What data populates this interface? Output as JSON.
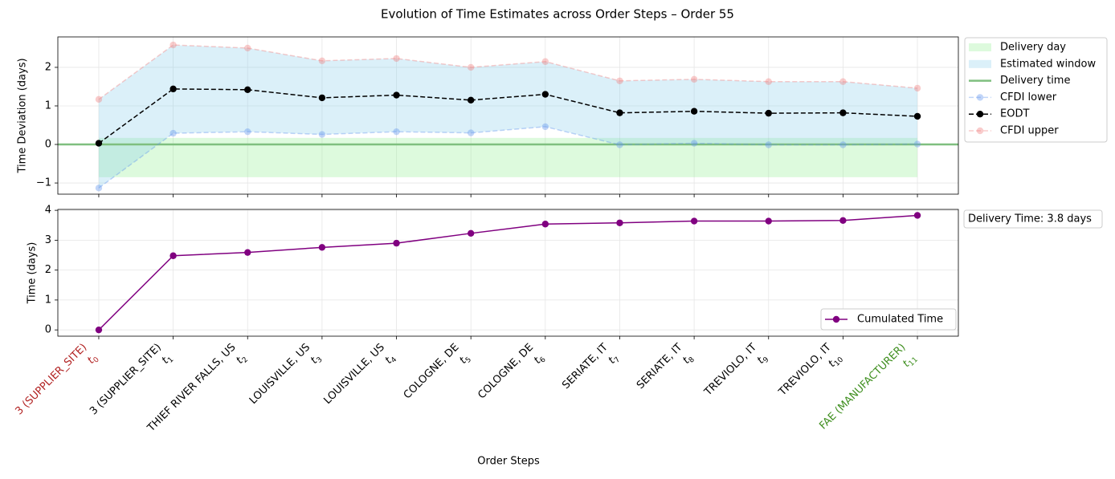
{
  "chart_data": [
    {
      "type": "line",
      "title": "Evolution of Time Estimates across Order Steps – Order 55",
      "y_label": "Time Deviation (days)",
      "ylim": [
        -1.29,
        2.79
      ],
      "yticks": [
        {
          "value": -1,
          "label": "−1"
        },
        0,
        1,
        2
      ],
      "grid": true,
      "delivery_day": {
        "name": "Delivery day",
        "color": "#90ee90",
        "alpha": 0.3,
        "range": [
          -0.85,
          0.17
        ]
      },
      "estimated_window": {
        "name": "Estimated window",
        "color": "#87ceeb",
        "alpha": 0.3
      },
      "delivery_time": {
        "name": "Delivery time",
        "color": "#7fbf7f",
        "value": 0
      },
      "series": [
        {
          "name": "CFDI lower",
          "color": "#6495ed",
          "alpha": 0.4,
          "dashed": true,
          "values": [
            -1.13,
            0.29,
            0.33,
            0.26,
            0.33,
            0.3,
            0.46,
            -0.01,
            0.03,
            -0.01,
            -0.01,
            0.01
          ]
        },
        {
          "name": "EODT",
          "color": "#000000",
          "alpha": 1,
          "dashed": true,
          "values": [
            0.03,
            1.44,
            1.42,
            1.21,
            1.28,
            1.15,
            1.3,
            0.82,
            0.86,
            0.81,
            0.82,
            0.73
          ]
        },
        {
          "name": "CFDI upper",
          "color": "#f08080",
          "alpha": 0.4,
          "dashed": true,
          "values": [
            1.17,
            2.58,
            2.5,
            2.17,
            2.23,
            2.0,
            2.15,
            1.65,
            1.69,
            1.63,
            1.63,
            1.46
          ]
        }
      ],
      "legend": "outside upper right"
    },
    {
      "type": "line",
      "y_label": "Time (days)",
      "x_label": "Order Steps",
      "categories": [
        "3 (SUPPLIER_SITE)",
        "3 (SUPPLIER_SITE)",
        "THIEF RIVER FALLS, US",
        "LOUISVILLE, US",
        "LOUISVILLE, US",
        "COLOGNE, DE",
        "COLOGNE, DE",
        "SERIATE, IT",
        "SERIATE, IT",
        "TREVIOLO, IT",
        "TREVIOLO, IT",
        "FAE (MANUFACTURER)"
      ],
      "step_symbol": "t",
      "step_subscripts": [
        "0",
        "1",
        "2",
        "3",
        "4",
        "5",
        "6",
        "7",
        "8",
        "9",
        "10",
        "11"
      ],
      "label_colors": [
        "firebrick",
        "black",
        "black",
        "black",
        "black",
        "black",
        "black",
        "black",
        "black",
        "black",
        "black",
        "#3f8f1f"
      ],
      "ylim": [
        -0.21,
        4.03
      ],
      "yticks": [
        0,
        1,
        2,
        3,
        4
      ],
      "grid": true,
      "series": [
        {
          "name": "Cumulated Time",
          "color": "#800080",
          "values": [
            0,
            2.48,
            2.59,
            2.76,
            2.9,
            3.23,
            3.54,
            3.58,
            3.64,
            3.64,
            3.66,
            3.83
          ]
        }
      ],
      "annotation": "Delivery Time: 3.8 days",
      "legend": "lower right"
    }
  ]
}
